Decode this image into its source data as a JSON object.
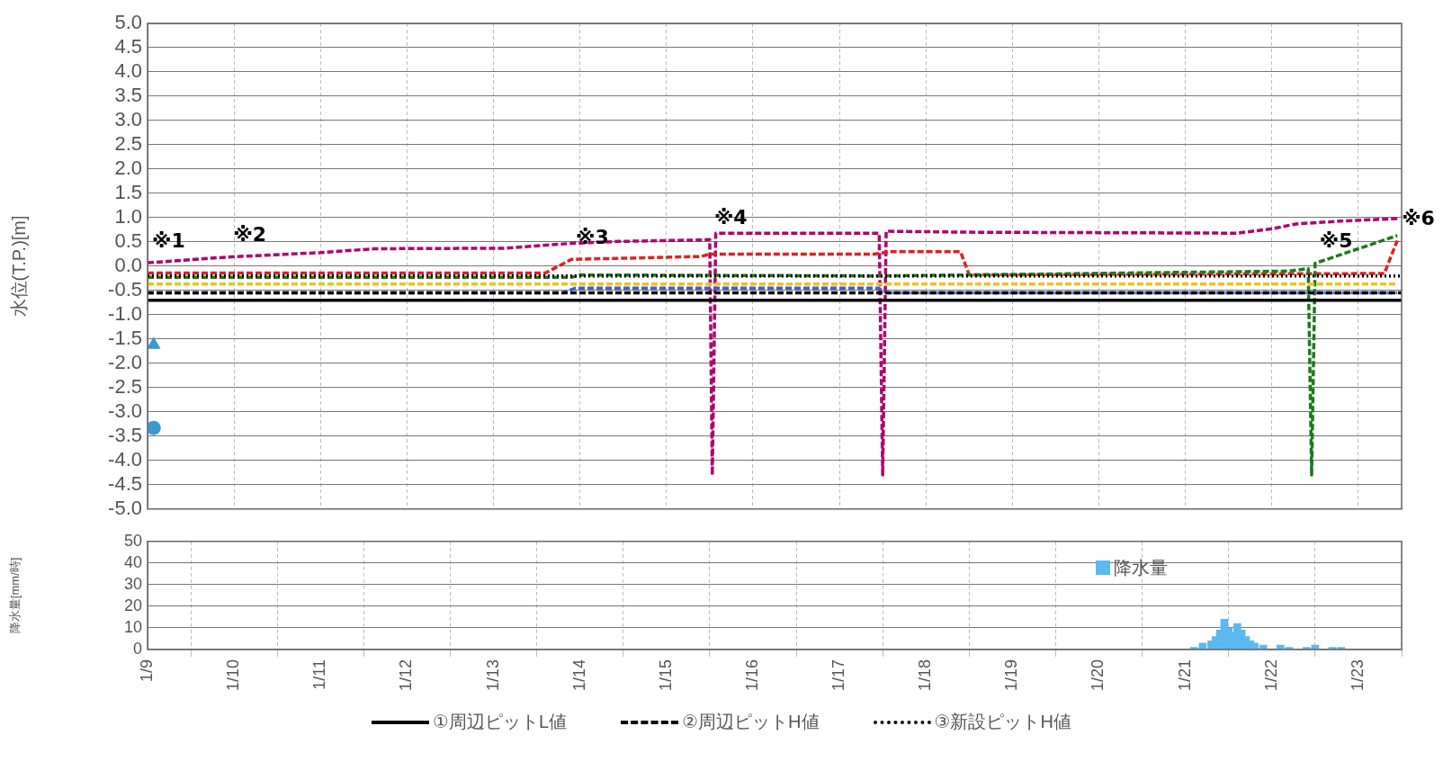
{
  "chart_data": [
    {
      "type": "line",
      "ylabel": "水位(T.P.)[m]",
      "xlim": [
        "--01-09",
        "--01-23T12:00"
      ],
      "ylim": [
        -5,
        5
      ],
      "xticks": [
        "--01-09",
        "--01-10",
        "--01-11",
        "--01-12",
        "--01-13",
        "--01-14",
        "--01-15",
        "--01-16",
        "--01-17",
        "--01-18",
        "--01-19",
        "--01-20",
        "--01-21",
        "--01-22",
        "--01-23"
      ],
      "yticks": [
        {
          "value": -5,
          "label": "-5.0"
        },
        {
          "value": -4.5,
          "label": "-4.5"
        },
        {
          "value": -4,
          "label": "-4.0"
        },
        {
          "value": -3.5,
          "label": "-3.5"
        },
        {
          "value": -3,
          "label": "-3.0"
        },
        {
          "value": -2.5,
          "label": "-2.5"
        },
        {
          "value": -2,
          "label": "-2.0"
        },
        {
          "value": -1.5,
          "label": "-1.5"
        },
        {
          "value": -1,
          "label": "-1.0"
        },
        {
          "value": -0.5,
          "label": "-0.5"
        },
        {
          "value": 0,
          "label": "0.0"
        },
        {
          "value": 0.5,
          "label": "0.5"
        },
        {
          "value": 1,
          "label": "1.0"
        },
        {
          "value": 1.5,
          "label": "1.5"
        },
        {
          "value": 2,
          "label": "2.0"
        },
        {
          "value": 2.5,
          "label": "2.5"
        },
        {
          "value": 3,
          "label": "3.0"
        },
        {
          "value": 3.5,
          "label": "3.5"
        },
        {
          "value": 4,
          "label": "4.0"
        },
        {
          "value": 4.5,
          "label": "4.5"
        },
        {
          "value": 5,
          "label": "5.0"
        }
      ],
      "grid": true,
      "legend": "bottom",
      "tick_labels": "y",
      "marker": "none",
      "annotations": [
        {
          "text": "※1",
          "x": "--01-09",
          "y": 0.07
        },
        {
          "text": "※2",
          "x": "--01-09T22:34",
          "y": 0.19
        },
        {
          "text": "※3",
          "x": "--01-13T21:36",
          "y": 0.14
        },
        {
          "text": "※4",
          "x": "--01-15T12:00",
          "y": 0.55
        },
        {
          "text": "※5",
          "x": "--01-22T12:00",
          "y": 0.06
        },
        {
          "text": "※6",
          "x": "--01-23T10:48",
          "y": 0.53
        }
      ],
      "series": [
        {
          "name": "①周辺ピットL値",
          "color": "#000000",
          "line_style": "solid",
          "x": [
            "--01-09",
            "--01-23T12:00"
          ],
          "values": [
            -0.7,
            -0.7
          ]
        },
        {
          "name": "②周辺ピットH値",
          "color": "#000000",
          "line_style": "dashed",
          "x": [
            "--01-09",
            "--01-23T12:00"
          ],
          "values": [
            -0.55,
            -0.55
          ]
        },
        {
          "name": "③新設ピットH値",
          "color": "#000000",
          "line_style": "dotted",
          "x": [
            "--01-09",
            "--01-23T12:00"
          ],
          "values": [
            -0.2,
            -0.2
          ]
        },
        {
          "color": "#f0c020",
          "line_style": "dashed",
          "x": [
            "--01-09",
            "--01-23T10:48"
          ],
          "values": [
            -0.37,
            -0.37
          ]
        },
        {
          "color": "#4060d0",
          "line_style": "dashed",
          "x": [
            "--01-09",
            "--01-13T19:12",
            "--01-13T22:48",
            "--01-17T10:48",
            "--01-17T13:12",
            "--01-23T10:48"
          ],
          "values": [
            -0.55,
            -0.55,
            -0.45,
            -0.45,
            -0.55,
            -0.55
          ]
        },
        {
          "color": "#1a7a1a",
          "line_style": "dashed",
          "x": [
            "--01-09",
            "--01-13T21:36",
            "--01-14",
            "--01-17T12:00",
            "--01-22T04:48",
            "--01-22T10:05",
            "--01-22T11:02",
            "--01-22T12:00",
            "--01-23T10:48"
          ],
          "values": [
            -0.23,
            -0.23,
            -0.18,
            -0.2,
            -0.1,
            -0.05,
            -4.3,
            0.06,
            0.63
          ]
        },
        {
          "color": "#e02020",
          "line_style": "dashed",
          "x": [
            "--01-09",
            "--01-13T14:24",
            "--01-13T21:36",
            "--01-15T09:36",
            "--01-15T12:00",
            "--01-17T09:36",
            "--01-17T14:24",
            "--01-18T09:36",
            "--01-18T12:00",
            "--01-23T07:12",
            "--01-23T10:48"
          ],
          "values": [
            -0.14,
            -0.14,
            0.14,
            0.2,
            0.25,
            0.25,
            0.3,
            0.3,
            -0.18,
            -0.15,
            0.53
          ]
        },
        {
          "color": "#b0006e",
          "line_style": "dashed",
          "x": [
            "--01-09",
            "--01-09T22:34",
            "--01-11",
            "--01-11T15:07",
            "--01-13T02:53",
            "--01-13T21:36",
            "--01-14T10:34",
            "--01-15T09:22",
            "--01-15T12:00",
            "--01-15T12:43",
            "--01-15T13:41",
            "--01-17T11:02",
            "--01-17T12:00",
            "--01-17T12:58",
            "--01-18T12:00",
            "--01-21T14:24",
            "--01-22",
            "--01-22T06:43",
            "--01-22T19:12",
            "--01-23T10:48"
          ],
          "values": [
            0.07,
            0.19,
            0.28,
            0.36,
            0.37,
            0.47,
            0.51,
            0.54,
            0.55,
            -4.3,
            0.68,
            0.68,
            -4.3,
            0.72,
            0.7,
            0.68,
            0.77,
            0.87,
            0.93,
            0.98
          ]
        },
        {
          "type": "scatter",
          "color": "#3a9ad0",
          "marker": "triangle",
          "x": [
            "--01-09T01:41"
          ],
          "values": [
            -1.62
          ]
        },
        {
          "type": "scatter",
          "color": "#3a9ad0",
          "marker": "circle",
          "x": [
            "--01-09T01:41"
          ],
          "values": [
            -3.33
          ]
        }
      ]
    },
    {
      "type": "bar",
      "ylabel": "降水量[mm/時]",
      "xlim": [
        "--01-09",
        "--01-23T12:00"
      ],
      "ylim": [
        0,
        50
      ],
      "xticks": [
        {
          "value": "--01-09",
          "label": "1/9"
        },
        {
          "value": "--01-10",
          "label": "1/10"
        },
        {
          "value": "--01-11",
          "label": "1/11"
        },
        {
          "value": "--01-12",
          "label": "1/12"
        },
        {
          "value": "--01-13",
          "label": "1/13"
        },
        {
          "value": "--01-14",
          "label": "1/14"
        },
        {
          "value": "--01-15",
          "label": "1/15"
        },
        {
          "value": "--01-16",
          "label": "1/16"
        },
        {
          "value": "--01-17",
          "label": "1/17"
        },
        {
          "value": "--01-18",
          "label": "1/18"
        },
        {
          "value": "--01-19",
          "label": "1/19"
        },
        {
          "value": "--01-20",
          "label": "1/20"
        },
        {
          "value": "--01-21",
          "label": "1/21"
        },
        {
          "value": "--01-22",
          "label": "1/22"
        },
        {
          "value": "--01-23",
          "label": "1/23"
        }
      ],
      "yticks": [
        0,
        10,
        20,
        30,
        40,
        50
      ],
      "grid": true,
      "legend": "top right",
      "series": [
        {
          "name": "降水量",
          "color": "#5bb8f0",
          "x": [
            "--01-21T02:24",
            "--01-21T04:48",
            "--01-21T07:12",
            "--01-21T08:24",
            "--01-21T09:36",
            "--01-21T10:48",
            "--01-21T12:00",
            "--01-21T13:12",
            "--01-21T14:24",
            "--01-21T15:36",
            "--01-21T16:48",
            "--01-21T18:00",
            "--01-21T19:12",
            "--01-21T21:36",
            "--01-22T02:24",
            "--01-22T04:48",
            "--01-22T09:36",
            "--01-22T12:00",
            "--01-22T16:48",
            "--01-22T19:12"
          ],
          "values": [
            1,
            3,
            4,
            6,
            9,
            14,
            10,
            8,
            12,
            9,
            6,
            4,
            3,
            2,
            2,
            1,
            1,
            2,
            1,
            1
          ]
        }
      ]
    }
  ]
}
